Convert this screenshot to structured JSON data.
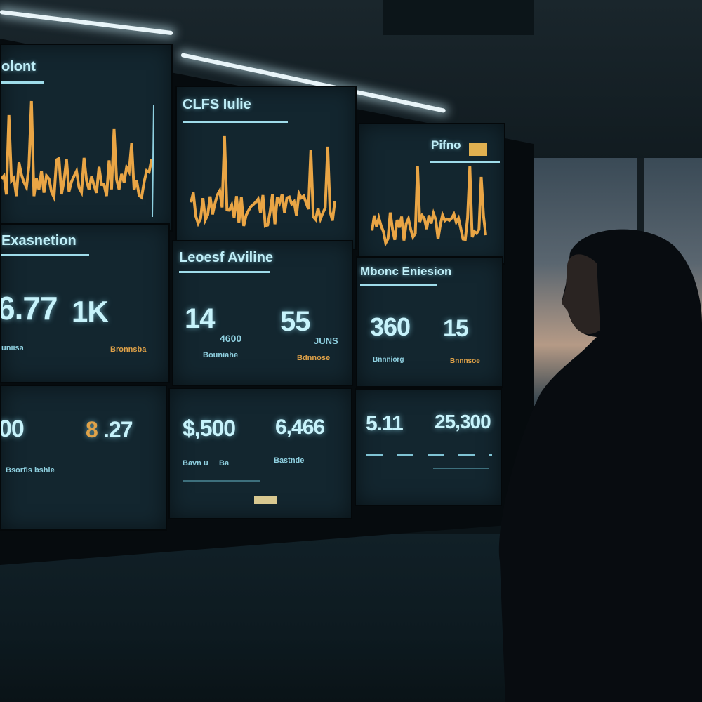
{
  "scene": "dashboard wall",
  "colors": {
    "screen": "#13262f",
    "text": "#c7f3fb",
    "chart_line": "#e9a545",
    "sky": "#b59a86"
  },
  "panels": {
    "p1": {
      "title": "olont"
    },
    "p2": {
      "title": "CLFS Iulie"
    },
    "p3": {
      "title": "Pifno"
    },
    "p4": {
      "title": "Exasnetion",
      "v1": "6.77",
      "v2": "1K",
      "l1": "uniisa",
      "l2": "Bronnsba"
    },
    "p5": {
      "title": "Leoesf Aviline",
      "v1": "14",
      "v1s": "4600",
      "v2": "55",
      "v2s": "JUNS",
      "l1": "Bouniahe",
      "l2": "Bdnnose"
    },
    "p6": {
      "title": "Mbonc Eniesion",
      "v1": "360",
      "v2": "15",
      "l1": "Bnnniorg",
      "l2": "Bnnnsoe"
    },
    "p7": {
      "v1": "00",
      "v2": "8",
      "v3": ".27",
      "l1": "Bsorfis bshie"
    },
    "p8": {
      "v1": "$,500",
      "v2": "6,466",
      "l1": "Bavn u",
      "l2": "Ba",
      "l3": "Bastnde"
    },
    "p9": {
      "v1": "5.11",
      "v2": "25,300"
    }
  }
}
